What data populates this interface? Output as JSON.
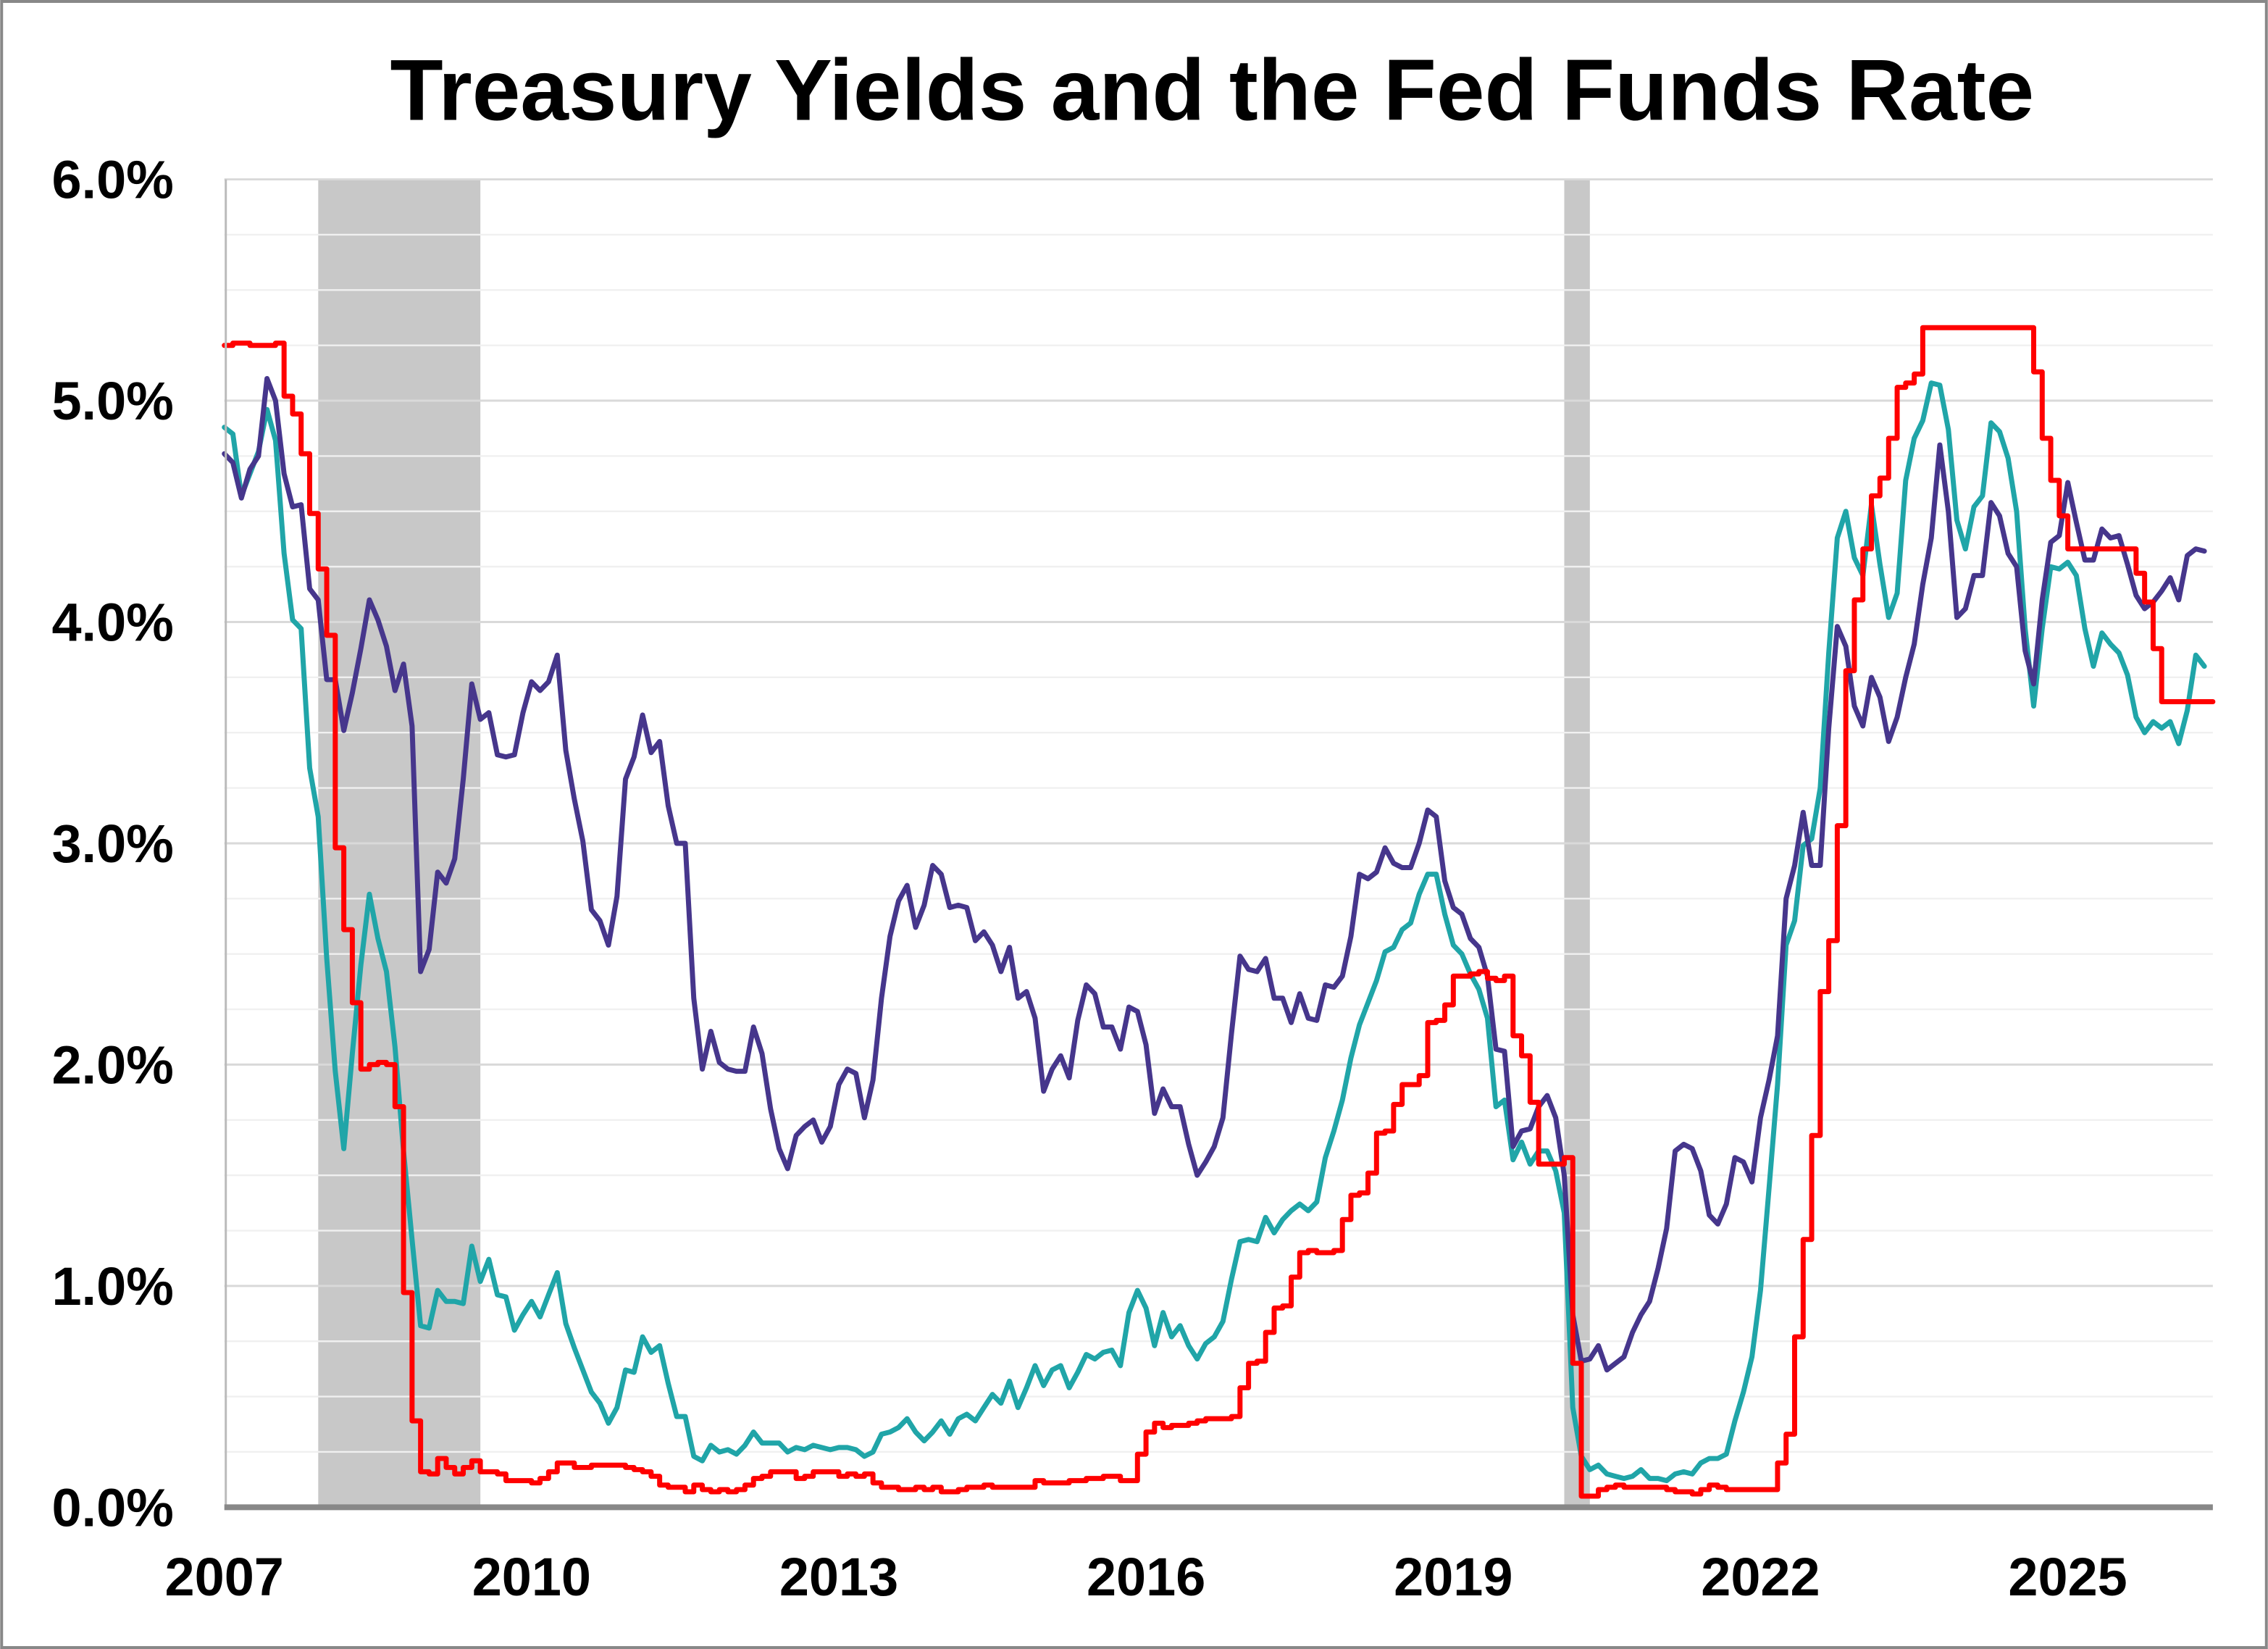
{
  "chart_data": {
    "type": "line",
    "title": "Treasury Yields and the Fed Funds Rate",
    "xlabel": "",
    "ylabel": "",
    "xlim": [
      "2007-01",
      "2026-05"
    ],
    "ylim": [
      0,
      6
    ],
    "y_tick_labels": [
      "0.0%",
      "1.0%",
      "2.0%",
      "3.0%",
      "4.0%",
      "5.0%",
      "6.0%"
    ],
    "x_tick_labels": [
      "2007",
      "2010",
      "2013",
      "2016",
      "2019",
      "2022",
      "2025"
    ],
    "grid": "horizontal major every 1.0%, minor every 0.25%",
    "legend": "none",
    "recession_shading": [
      [
        "2007-12",
        "2009-06"
      ],
      [
        "2020-02",
        "2020-04"
      ]
    ],
    "x": [
      "2007-01",
      "2007-02",
      "2007-03",
      "2007-04",
      "2007-05",
      "2007-06",
      "2007-07",
      "2007-08",
      "2007-09",
      "2007-10",
      "2007-11",
      "2007-12",
      "2008-01",
      "2008-02",
      "2008-03",
      "2008-04",
      "2008-05",
      "2008-06",
      "2008-07",
      "2008-08",
      "2008-09",
      "2008-10",
      "2008-11",
      "2008-12",
      "2009-01",
      "2009-02",
      "2009-03",
      "2009-04",
      "2009-05",
      "2009-06",
      "2009-07",
      "2009-08",
      "2009-09",
      "2009-10",
      "2009-11",
      "2009-12",
      "2010-01",
      "2010-02",
      "2010-03",
      "2010-04",
      "2010-05",
      "2010-06",
      "2010-07",
      "2010-08",
      "2010-09",
      "2010-10",
      "2010-11",
      "2010-12",
      "2011-01",
      "2011-02",
      "2011-03",
      "2011-04",
      "2011-05",
      "2011-06",
      "2011-07",
      "2011-08",
      "2011-09",
      "2011-10",
      "2011-11",
      "2011-12",
      "2012-01",
      "2012-02",
      "2012-03",
      "2012-04",
      "2012-05",
      "2012-06",
      "2012-07",
      "2012-08",
      "2012-09",
      "2012-10",
      "2012-11",
      "2012-12",
      "2013-01",
      "2013-02",
      "2013-03",
      "2013-04",
      "2013-05",
      "2013-06",
      "2013-07",
      "2013-08",
      "2013-09",
      "2013-10",
      "2013-11",
      "2013-12",
      "2014-01",
      "2014-02",
      "2014-03",
      "2014-04",
      "2014-05",
      "2014-06",
      "2014-07",
      "2014-08",
      "2014-09",
      "2014-10",
      "2014-11",
      "2014-12",
      "2015-01",
      "2015-02",
      "2015-03",
      "2015-04",
      "2015-05",
      "2015-06",
      "2015-07",
      "2015-08",
      "2015-09",
      "2015-10",
      "2015-11",
      "2015-12",
      "2016-01",
      "2016-02",
      "2016-03",
      "2016-04",
      "2016-05",
      "2016-06",
      "2016-07",
      "2016-08",
      "2016-09",
      "2016-10",
      "2016-11",
      "2016-12",
      "2017-01",
      "2017-02",
      "2017-03",
      "2017-04",
      "2017-05",
      "2017-06",
      "2017-07",
      "2017-08",
      "2017-09",
      "2017-10",
      "2017-11",
      "2017-12",
      "2018-01",
      "2018-02",
      "2018-03",
      "2018-04",
      "2018-05",
      "2018-06",
      "2018-07",
      "2018-08",
      "2018-09",
      "2018-10",
      "2018-11",
      "2018-12",
      "2019-01",
      "2019-02",
      "2019-03",
      "2019-04",
      "2019-05",
      "2019-06",
      "2019-07",
      "2019-08",
      "2019-09",
      "2019-10",
      "2019-11",
      "2019-12",
      "2020-01",
      "2020-02",
      "2020-03",
      "2020-04",
      "2020-05",
      "2020-06",
      "2020-07",
      "2020-08",
      "2020-09",
      "2020-10",
      "2020-11",
      "2020-12",
      "2021-01",
      "2021-02",
      "2021-03",
      "2021-04",
      "2021-05",
      "2021-06",
      "2021-07",
      "2021-08",
      "2021-09",
      "2021-10",
      "2021-11",
      "2021-12",
      "2022-01",
      "2022-02",
      "2022-03",
      "2022-04",
      "2022-05",
      "2022-06",
      "2022-07",
      "2022-08",
      "2022-09",
      "2022-10",
      "2022-11",
      "2022-12",
      "2023-01",
      "2023-02",
      "2023-03",
      "2023-04",
      "2023-05",
      "2023-06",
      "2023-07",
      "2023-08",
      "2023-09",
      "2023-10",
      "2023-11",
      "2023-12",
      "2024-01",
      "2024-02",
      "2024-03",
      "2024-04",
      "2024-05",
      "2024-06",
      "2024-07",
      "2024-08",
      "2024-09",
      "2024-10",
      "2024-11",
      "2024-12",
      "2025-01",
      "2025-02",
      "2025-03",
      "2025-04",
      "2025-05",
      "2025-06",
      "2025-07",
      "2025-08",
      "2025-09",
      "2025-10",
      "2025-11",
      "2025-12",
      "2026-01",
      "2026-02",
      "2026-03",
      "2026-04",
      "2026-05"
    ],
    "series": [
      {
        "color": "#46368C",
        "values": [
          4.76,
          4.72,
          4.56,
          4.69,
          4.75,
          5.1,
          5.0,
          4.67,
          4.52,
          4.53,
          4.15,
          4.1,
          3.74,
          3.74,
          3.51,
          3.68,
          3.88,
          4.1,
          4.01,
          3.89,
          3.69,
          3.81,
          3.53,
          2.42,
          2.52,
          2.87,
          2.82,
          2.93,
          3.29,
          3.72,
          3.56,
          3.59,
          3.4,
          3.39,
          3.4,
          3.59,
          3.73,
          3.69,
          3.73,
          3.85,
          3.42,
          3.2,
          3.01,
          2.7,
          2.65,
          2.54,
          2.76,
          3.29,
          3.39,
          3.58,
          3.41,
          3.46,
          3.17,
          3.0,
          3.0,
          2.3,
          1.98,
          2.15,
          2.01,
          1.98,
          1.97,
          1.97,
          2.17,
          2.05,
          1.8,
          1.62,
          1.53,
          1.68,
          1.72,
          1.75,
          1.65,
          1.72,
          1.91,
          1.98,
          1.96,
          1.76,
          1.93,
          2.3,
          2.58,
          2.74,
          2.81,
          2.62,
          2.72,
          2.9,
          2.86,
          2.71,
          2.72,
          2.71,
          2.56,
          2.6,
          2.54,
          2.42,
          2.53,
          2.3,
          2.33,
          2.21,
          1.88,
          1.98,
          2.04,
          1.94,
          2.2,
          2.36,
          2.32,
          2.17,
          2.17,
          2.07,
          2.26,
          2.24,
          2.09,
          1.78,
          1.89,
          1.81,
          1.81,
          1.64,
          1.5,
          1.56,
          1.63,
          1.76,
          2.14,
          2.49,
          2.43,
          2.42,
          2.48,
          2.3,
          2.3,
          2.19,
          2.32,
          2.21,
          2.2,
          2.36,
          2.35,
          2.4,
          2.58,
          2.86,
          2.84,
          2.87,
          2.98,
          2.91,
          2.89,
          2.89,
          3.0,
          3.15,
          3.12,
          2.83,
          2.71,
          2.68,
          2.57,
          2.53,
          2.4,
          2.07,
          2.06,
          1.63,
          1.7,
          1.71,
          1.81,
          1.86,
          1.76,
          1.5,
          0.87,
          0.66,
          0.67,
          0.73,
          0.62,
          0.65,
          0.68,
          0.79,
          0.87,
          0.93,
          1.08,
          1.26,
          1.61,
          1.64,
          1.62,
          1.52,
          1.32,
          1.28,
          1.37,
          1.58,
          1.56,
          1.47,
          1.76,
          1.93,
          2.13,
          2.75,
          2.9,
          3.14,
          2.9,
          2.9,
          3.52,
          3.98,
          3.89,
          3.62,
          3.53,
          3.75,
          3.66,
          3.46,
          3.57,
          3.75,
          3.9,
          4.17,
          4.38,
          4.8,
          4.5,
          4.02,
          4.06,
          4.21,
          4.21,
          4.54,
          4.48,
          4.31,
          4.25,
          3.87,
          3.72,
          4.1,
          4.36,
          4.39,
          4.63,
          4.45,
          4.28,
          4.28,
          4.42,
          4.38,
          4.39,
          4.26,
          4.12,
          4.06,
          4.09,
          4.14,
          4.2,
          4.1,
          4.3,
          4.33,
          4.32
        ]
      },
      {
        "color": "#20A5A8",
        "values": [
          4.88,
          4.85,
          4.57,
          4.67,
          4.77,
          4.96,
          4.82,
          4.31,
          4.01,
          3.97,
          3.34,
          3.12,
          2.48,
          1.97,
          1.62,
          2.05,
          2.45,
          2.77,
          2.57,
          2.42,
          2.08,
          1.61,
          1.21,
          0.82,
          0.81,
          0.98,
          0.93,
          0.93,
          0.92,
          1.18,
          1.02,
          1.12,
          0.96,
          0.95,
          0.8,
          0.87,
          0.93,
          0.86,
          0.96,
          1.06,
          0.83,
          0.72,
          0.62,
          0.52,
          0.47,
          0.38,
          0.45,
          0.62,
          0.61,
          0.77,
          0.7,
          0.73,
          0.56,
          0.41,
          0.41,
          0.23,
          0.21,
          0.28,
          0.25,
          0.26,
          0.24,
          0.28,
          0.34,
          0.29,
          0.29,
          0.29,
          0.25,
          0.27,
          0.26,
          0.28,
          0.27,
          0.26,
          0.27,
          0.27,
          0.26,
          0.23,
          0.25,
          0.33,
          0.34,
          0.36,
          0.4,
          0.34,
          0.3,
          0.34,
          0.39,
          0.33,
          0.4,
          0.42,
          0.39,
          0.45,
          0.51,
          0.47,
          0.57,
          0.45,
          0.54,
          0.64,
          0.55,
          0.62,
          0.64,
          0.54,
          0.61,
          0.69,
          0.67,
          0.7,
          0.71,
          0.64,
          0.88,
          0.98,
          0.9,
          0.73,
          0.88,
          0.77,
          0.82,
          0.73,
          0.67,
          0.74,
          0.77,
          0.84,
          1.03,
          1.2,
          1.21,
          1.2,
          1.31,
          1.24,
          1.3,
          1.34,
          1.37,
          1.34,
          1.38,
          1.58,
          1.7,
          1.84,
          2.03,
          2.18,
          2.28,
          2.38,
          2.51,
          2.53,
          2.61,
          2.64,
          2.77,
          2.86,
          2.86,
          2.68,
          2.54,
          2.5,
          2.41,
          2.34,
          2.21,
          1.81,
          1.84,
          1.57,
          1.65,
          1.55,
          1.61,
          1.61,
          1.52,
          1.33,
          0.45,
          0.23,
          0.17,
          0.19,
          0.15,
          0.14,
          0.13,
          0.14,
          0.17,
          0.13,
          0.13,
          0.12,
          0.15,
          0.16,
          0.15,
          0.2,
          0.22,
          0.22,
          0.24,
          0.39,
          0.52,
          0.68,
          0.98,
          1.44,
          1.91,
          2.54,
          2.65,
          2.99,
          3.02,
          3.25,
          3.86,
          4.38,
          4.5,
          4.29,
          4.21,
          4.53,
          4.26,
          4.02,
          4.13,
          4.64,
          4.83,
          4.91,
          5.08,
          5.07,
          4.87,
          4.46,
          4.33,
          4.52,
          4.57,
          4.9,
          4.86,
          4.74,
          4.5,
          3.97,
          3.62,
          3.97,
          4.25,
          4.24,
          4.27,
          4.21,
          3.97,
          3.8,
          3.95,
          3.9,
          3.86,
          3.76,
          3.57,
          3.5,
          3.55,
          3.52,
          3.55,
          3.45,
          3.6,
          3.85,
          3.8
        ]
      },
      {
        "color": "#FF0000",
        "step": true,
        "values": [
          5.25,
          5.26,
          5.26,
          5.25,
          5.25,
          5.25,
          5.26,
          5.02,
          4.94,
          4.76,
          4.49,
          4.24,
          3.94,
          2.98,
          2.61,
          2.28,
          1.98,
          2.0,
          2.01,
          2.0,
          1.81,
          0.97,
          0.39,
          0.16,
          0.15,
          0.22,
          0.18,
          0.15,
          0.18,
          0.21,
          0.16,
          0.16,
          0.15,
          0.12,
          0.12,
          0.12,
          0.11,
          0.13,
          0.16,
          0.2,
          0.2,
          0.18,
          0.18,
          0.19,
          0.19,
          0.19,
          0.19,
          0.18,
          0.17,
          0.16,
          0.14,
          0.1,
          0.09,
          0.09,
          0.07,
          0.1,
          0.08,
          0.07,
          0.08,
          0.07,
          0.08,
          0.1,
          0.13,
          0.14,
          0.16,
          0.16,
          0.16,
          0.13,
          0.14,
          0.16,
          0.16,
          0.16,
          0.14,
          0.15,
          0.14,
          0.15,
          0.11,
          0.09,
          0.09,
          0.08,
          0.08,
          0.09,
          0.08,
          0.09,
          0.07,
          0.07,
          0.08,
          0.09,
          0.09,
          0.1,
          0.09,
          0.09,
          0.09,
          0.09,
          0.09,
          0.12,
          0.11,
          0.11,
          0.11,
          0.12,
          0.12,
          0.13,
          0.13,
          0.14,
          0.14,
          0.12,
          0.12,
          0.24,
          0.34,
          0.38,
          0.36,
          0.37,
          0.37,
          0.38,
          0.39,
          0.4,
          0.4,
          0.4,
          0.41,
          0.54,
          0.65,
          0.66,
          0.79,
          0.9,
          0.91,
          1.04,
          1.15,
          1.16,
          1.15,
          1.15,
          1.16,
          1.3,
          1.41,
          1.42,
          1.51,
          1.69,
          1.7,
          1.82,
          1.91,
          1.91,
          1.95,
          2.19,
          2.2,
          2.27,
          2.4,
          2.4,
          2.41,
          2.42,
          2.39,
          2.38,
          2.4,
          2.13,
          2.04,
          1.83,
          1.55,
          1.55,
          1.55,
          1.58,
          0.65,
          0.05,
          0.05,
          0.08,
          0.09,
          0.1,
          0.09,
          0.09,
          0.09,
          0.09,
          0.09,
          0.08,
          0.07,
          0.07,
          0.06,
          0.08,
          0.1,
          0.09,
          0.08,
          0.08,
          0.08,
          0.08,
          0.08,
          0.08,
          0.2,
          0.33,
          0.77,
          1.21,
          1.68,
          2.33,
          2.56,
          3.08,
          3.78,
          4.1,
          4.33,
          4.57,
          4.65,
          4.83,
          5.06,
          5.08,
          5.12,
          5.33,
          5.33,
          5.33,
          5.33,
          5.33,
          5.33,
          5.33,
          5.33,
          5.33,
          5.33,
          5.33,
          5.33,
          5.33,
          5.13,
          4.83,
          4.64,
          4.48,
          4.33,
          4.33,
          4.33,
          4.33,
          4.33,
          4.33,
          4.33,
          4.33,
          4.22,
          4.09,
          3.88,
          3.64,
          3.64,
          3.64,
          3.64,
          3.64,
          3.64
        ]
      }
    ]
  }
}
